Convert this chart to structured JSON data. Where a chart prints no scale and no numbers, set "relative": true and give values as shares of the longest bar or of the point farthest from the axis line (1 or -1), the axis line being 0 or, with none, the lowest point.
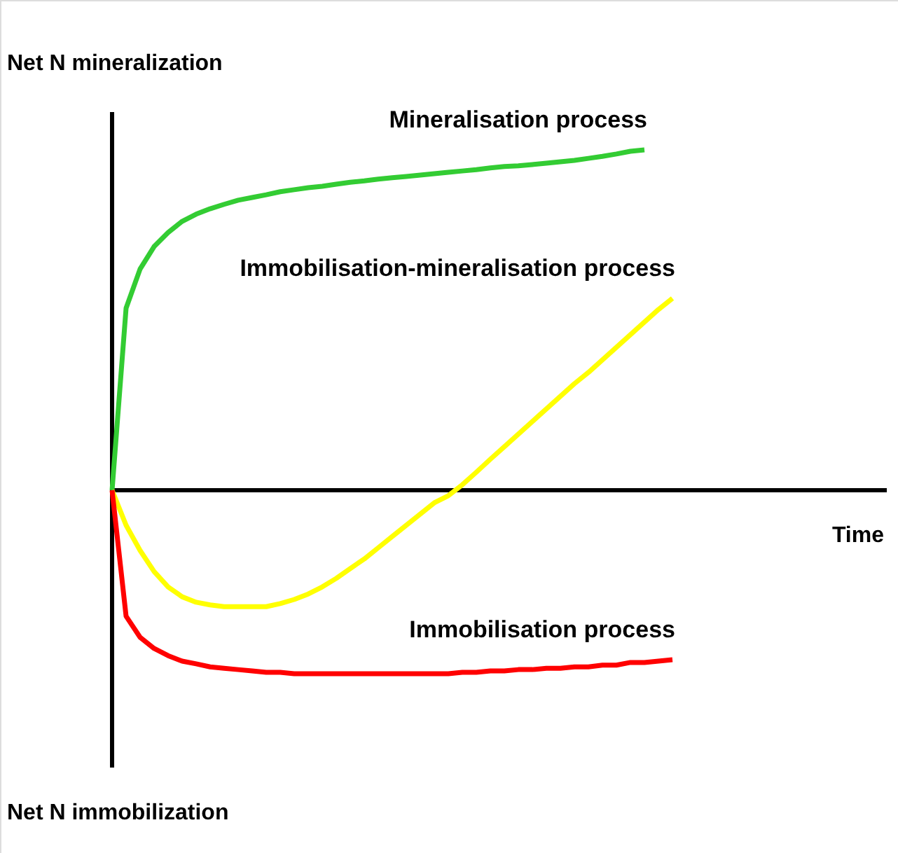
{
  "chart_data": {
    "type": "line",
    "relative": true,
    "ylabel": "Net N mineralization",
    "annotations": [
      "Net N immobilization",
      "Time"
    ],
    "marker": "none",
    "line_style": "solid",
    "categories": [
      null,
      null,
      null,
      null,
      null,
      null,
      null,
      null,
      null,
      null,
      null,
      null,
      null,
      null,
      null,
      null,
      null,
      null,
      null,
      null,
      null,
      null,
      null,
      null,
      null,
      null,
      null,
      null,
      null,
      null,
      null,
      null,
      null,
      null,
      null,
      null,
      null,
      null,
      null,
      null,
      null
    ],
    "series": [
      {
        "name": "Mineralisation process",
        "color": "#33cc33",
        "values": [
          0,
          0.535,
          0.65,
          0.716,
          0.757,
          0.79,
          0.811,
          0.827,
          0.84,
          0.852,
          0.86,
          0.868,
          0.877,
          0.883,
          0.889,
          0.893,
          0.899,
          0.905,
          0.909,
          0.914,
          0.918,
          0.922,
          0.926,
          0.93,
          0.934,
          0.938,
          0.942,
          0.947,
          0.951,
          0.953,
          0.957,
          0.961,
          0.965,
          0.969,
          0.975,
          0.981,
          0.988,
          0.996,
          1.0,
          null,
          null
        ]
      },
      {
        "name": "Immobilisation-mineralisation process",
        "color": "#ffff00",
        "values": [
          0,
          -0.103,
          -0.177,
          -0.239,
          -0.284,
          -0.313,
          -0.329,
          -0.337,
          -0.342,
          -0.342,
          -0.342,
          -0.342,
          -0.333,
          -0.321,
          -0.305,
          -0.284,
          -0.259,
          -0.23,
          -0.202,
          -0.169,
          -0.136,
          -0.103,
          -0.07,
          -0.037,
          -0.016,
          0.016,
          0.053,
          0.091,
          0.128,
          0.165,
          0.202,
          0.239,
          0.276,
          0.313,
          0.346,
          0.383,
          0.42,
          0.457,
          0.494,
          0.531,
          0.564
        ]
      },
      {
        "name": "Immobilisation process",
        "color": "#ff0000",
        "values": [
          0,
          -0.37,
          -0.432,
          -0.465,
          -0.486,
          -0.502,
          -0.51,
          -0.519,
          -0.523,
          -0.527,
          -0.531,
          -0.535,
          -0.535,
          -0.539,
          -0.539,
          -0.539,
          -0.539,
          -0.539,
          -0.539,
          -0.539,
          -0.539,
          -0.539,
          -0.539,
          -0.539,
          -0.539,
          -0.535,
          -0.535,
          -0.531,
          -0.531,
          -0.527,
          -0.527,
          -0.523,
          -0.523,
          -0.519,
          -0.519,
          -0.514,
          -0.514,
          -0.506,
          -0.506,
          -0.502,
          -0.498
        ]
      }
    ]
  }
}
